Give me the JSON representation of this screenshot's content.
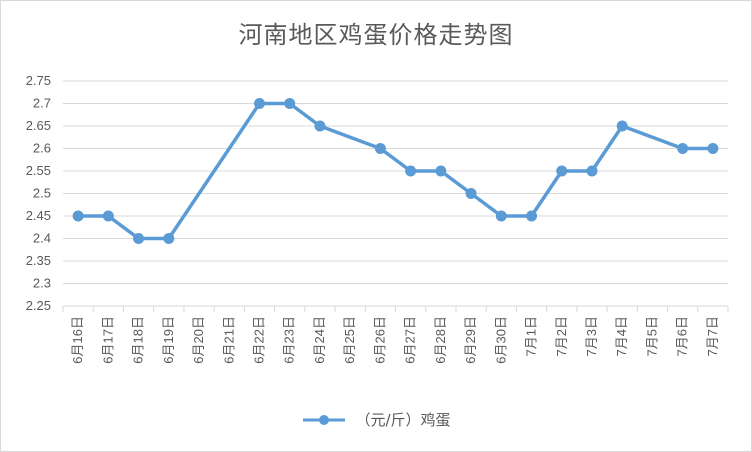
{
  "chart_data": {
    "type": "line",
    "title": "河南地区鸡蛋价格走势图",
    "xlabel": "",
    "ylabel": "",
    "ylim": [
      2.25,
      2.75
    ],
    "yticks": [
      "2.25",
      "2.3",
      "2.35",
      "2.4",
      "2.45",
      "2.5",
      "2.55",
      "2.6",
      "2.65",
      "2.7",
      "2.75"
    ],
    "categories": [
      "6月16日",
      "6月17日",
      "6月18日",
      "6月19日",
      "6月20日",
      "6月21日",
      "6月22日",
      "6月23日",
      "6月24日",
      "6月25日",
      "6月26日",
      "6月27日",
      "6月28日",
      "6月29日",
      "6月30日",
      "7月1日",
      "7月2日",
      "7月3日",
      "7月4日",
      "7月5日",
      "7月6日",
      "7月7日"
    ],
    "series": [
      {
        "name": "（元/斤）鸡蛋",
        "color": "#5b9bd5",
        "values": [
          2.45,
          2.45,
          2.4,
          2.4,
          null,
          null,
          2.7,
          2.7,
          2.65,
          null,
          2.6,
          2.55,
          2.55,
          2.5,
          2.45,
          2.45,
          2.55,
          2.55,
          2.65,
          null,
          2.6,
          2.6
        ]
      }
    ],
    "grid": true,
    "legend_position": "bottom"
  }
}
